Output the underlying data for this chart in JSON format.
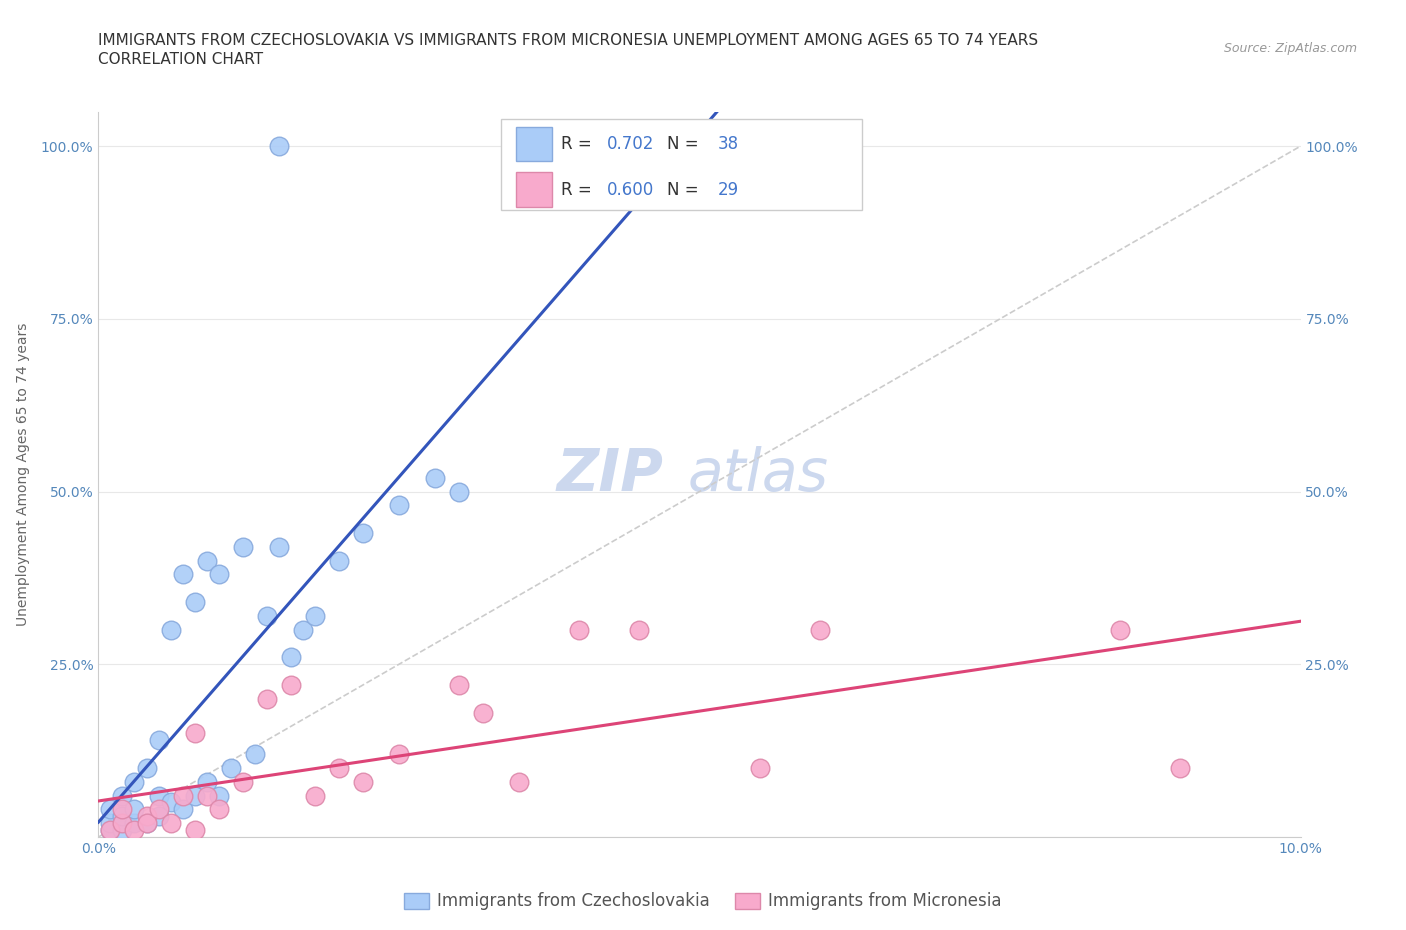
{
  "title_line1": "IMMIGRANTS FROM CZECHOSLOVAKIA VS IMMIGRANTS FROM MICRONESIA UNEMPLOYMENT AMONG AGES 65 TO 74 YEARS",
  "title_line2": "CORRELATION CHART",
  "source_text": "Source: ZipAtlas.com",
  "ylabel": "Unemployment Among Ages 65 to 74 years",
  "watermark_part1": "ZIP",
  "watermark_part2": "atlas",
  "blue_r": "0.702",
  "blue_n": "38",
  "pink_r": "0.600",
  "pink_n": "29",
  "blue_label": "Immigrants from Czechoslovakia",
  "pink_label": "Immigrants from Micronesia",
  "xlim": [
    0.0,
    0.1
  ],
  "ylim": [
    0.0,
    1.05
  ],
  "xticks": [
    0.0,
    0.02,
    0.04,
    0.06,
    0.08,
    0.1
  ],
  "xtick_labels": [
    "0.0%",
    "",
    "",
    "",
    "",
    "10.0%"
  ],
  "yticks": [
    0.0,
    0.25,
    0.5,
    0.75,
    1.0
  ],
  "ytick_labels": [
    "",
    "25.0%",
    "50.0%",
    "75.0%",
    "100.0%"
  ],
  "blue_scatter_x": [
    0.001,
    0.001,
    0.001,
    0.002,
    0.002,
    0.002,
    0.003,
    0.003,
    0.003,
    0.004,
    0.004,
    0.005,
    0.005,
    0.005,
    0.006,
    0.006,
    0.007,
    0.007,
    0.008,
    0.008,
    0.009,
    0.009,
    0.01,
    0.01,
    0.011,
    0.012,
    0.013,
    0.014,
    0.015,
    0.016,
    0.017,
    0.018,
    0.02,
    0.022,
    0.025,
    0.028,
    0.015,
    0.03
  ],
  "blue_scatter_y": [
    0.01,
    0.02,
    0.04,
    0.01,
    0.03,
    0.06,
    0.02,
    0.04,
    0.08,
    0.02,
    0.1,
    0.03,
    0.06,
    0.14,
    0.05,
    0.3,
    0.04,
    0.38,
    0.06,
    0.34,
    0.08,
    0.4,
    0.06,
    0.38,
    0.1,
    0.42,
    0.12,
    0.32,
    0.42,
    0.26,
    0.3,
    0.32,
    0.4,
    0.44,
    0.48,
    0.52,
    1.0,
    0.5
  ],
  "pink_scatter_x": [
    0.001,
    0.002,
    0.002,
    0.003,
    0.004,
    0.004,
    0.005,
    0.006,
    0.007,
    0.008,
    0.008,
    0.009,
    0.01,
    0.012,
    0.014,
    0.016,
    0.018,
    0.02,
    0.022,
    0.025,
    0.03,
    0.032,
    0.035,
    0.04,
    0.045,
    0.055,
    0.06,
    0.085,
    0.09
  ],
  "pink_scatter_y": [
    0.01,
    0.02,
    0.04,
    0.01,
    0.03,
    0.02,
    0.04,
    0.02,
    0.06,
    0.01,
    0.15,
    0.06,
    0.04,
    0.08,
    0.2,
    0.22,
    0.06,
    0.1,
    0.08,
    0.12,
    0.22,
    0.18,
    0.08,
    0.3,
    0.3,
    0.1,
    0.3,
    0.3,
    0.1
  ],
  "blue_color": "#aaccf8",
  "blue_edge_color": "#88aadd",
  "blue_line_color": "#3355bb",
  "pink_color": "#f8aacc",
  "pink_edge_color": "#dd88aa",
  "pink_line_color": "#dd4477",
  "ref_line_color": "#cccccc",
  "ref_line_x": [
    0.0,
    0.1
  ],
  "ref_line_y": [
    0.0,
    1.0
  ],
  "background_color": "#ffffff",
  "grid_color": "#e8e8e8",
  "title_fontsize": 11,
  "label_fontsize": 10,
  "tick_fontsize": 10,
  "legend_fontsize": 12,
  "watermark_fontsize_zip": 42,
  "watermark_fontsize_atlas": 42,
  "watermark_color": "#dde8f5",
  "source_fontsize": 9
}
